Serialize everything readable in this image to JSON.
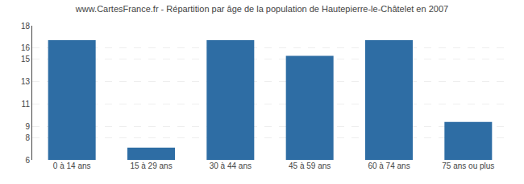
{
  "chart_data": {
    "type": "bar",
    "title": "www.CartesFrance.fr - Répartition par âge de la population de Hautepierre-le-Châtelet en 2007",
    "categories": [
      "0 à 14 ans",
      "15 à 29 ans",
      "30 à 44 ans",
      "45 à 59 ans",
      "60 à 74 ans",
      "75 ans ou plus"
    ],
    "values": [
      16.7,
      7.1,
      16.7,
      15.3,
      16.7,
      9.4
    ],
    "color": "#2E6DA4",
    "ylim": [
      6,
      18
    ],
    "yticks": [
      6,
      8,
      9,
      11,
      13,
      15,
      16,
      18
    ],
    "grid": true
  }
}
